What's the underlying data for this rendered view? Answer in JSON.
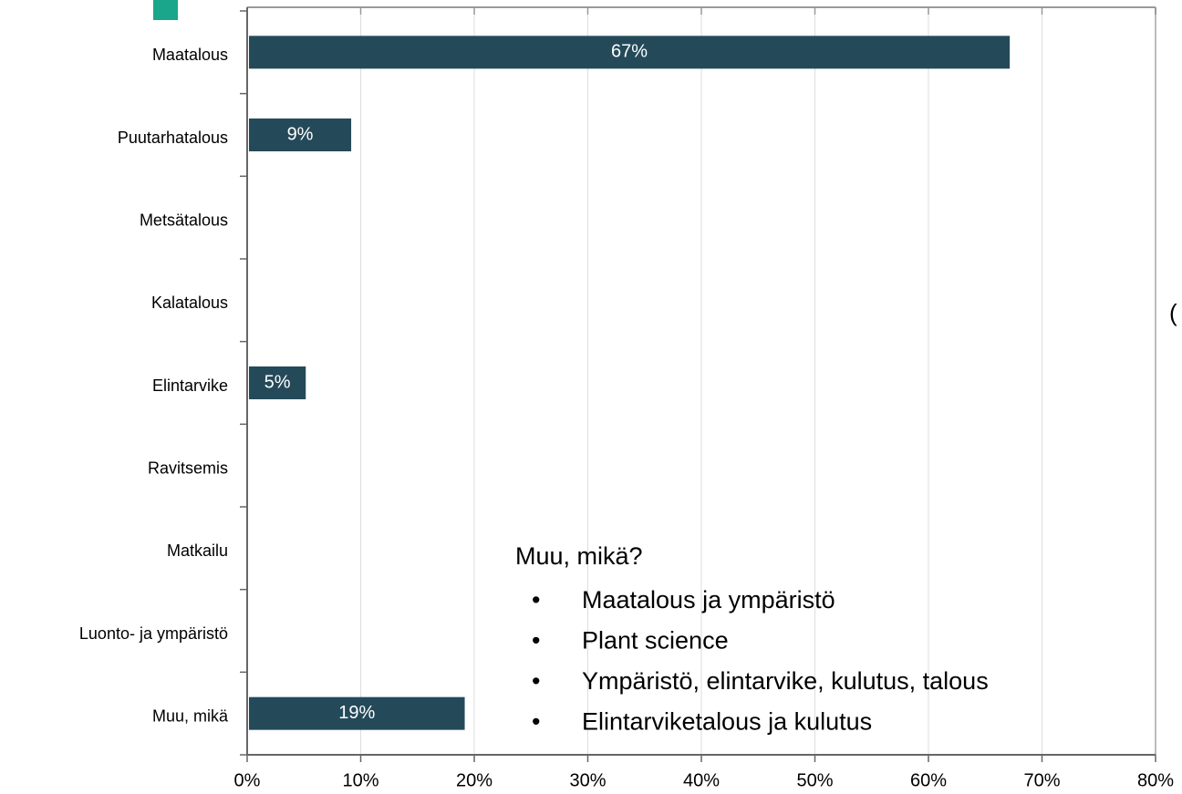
{
  "chart_data": {
    "type": "bar",
    "orientation": "horizontal",
    "categories": [
      "Maatalous",
      "Puutarhatalous",
      "Metsätalous",
      "Kalatalous",
      "Elintarvike",
      "Ravitsemis",
      "Matkailu",
      "Luonto- ja ympäristö",
      "Muu, mikä"
    ],
    "values": [
      67,
      9,
      0,
      0,
      5,
      0,
      0,
      0,
      19
    ],
    "value_labels": [
      "67%",
      "9%",
      null,
      null,
      "5%",
      null,
      null,
      null,
      "19%"
    ],
    "color": "#244a5a",
    "xlim": [
      0,
      80
    ],
    "xticks": [
      {
        "value": 0,
        "label": "0%"
      },
      {
        "value": 10,
        "label": "10%"
      },
      {
        "value": 20,
        "label": "20%"
      },
      {
        "value": 30,
        "label": "30%"
      },
      {
        "value": 40,
        "label": "40%"
      },
      {
        "value": 50,
        "label": "50%"
      },
      {
        "value": 60,
        "label": "60%"
      },
      {
        "value": 70,
        "label": "70%"
      },
      {
        "value": 80,
        "label": "80%"
      }
    ],
    "grid": true,
    "annotation": {
      "title": "Muu, mikä?",
      "items": [
        "Maatalous ja ympäristö",
        "Plant science",
        "Ympäristö, elintarvike, kulutus, talous",
        "Elintarviketalous ja kulutus"
      ]
    },
    "clipped_text": "("
  }
}
